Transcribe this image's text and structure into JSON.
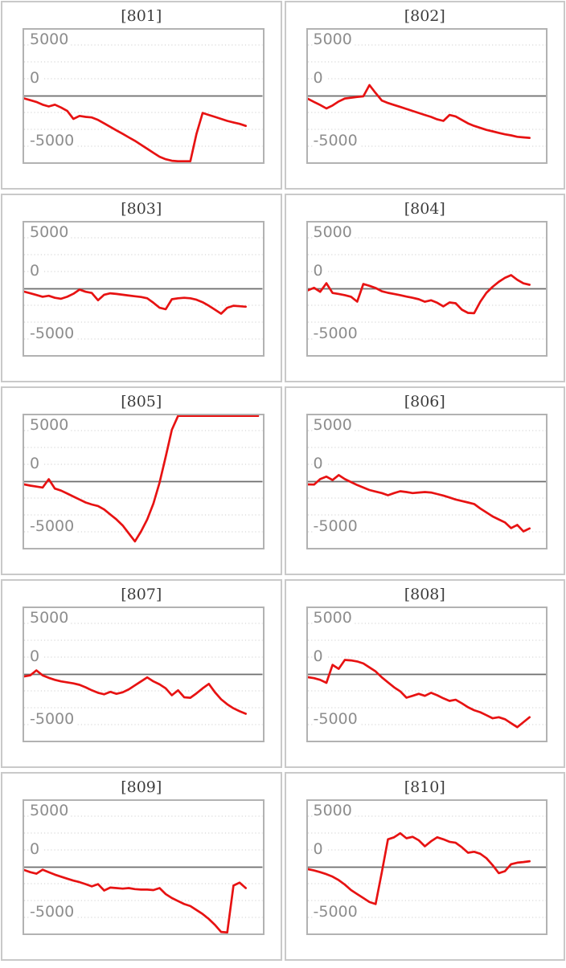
{
  "axis": {
    "yticks": [
      "5000",
      "0",
      "-5000"
    ],
    "ytick_values": [
      5000,
      0,
      -5000
    ],
    "ylim": [
      -6650,
      6650
    ],
    "grid": "dotted horizontal lines, zero axis solid",
    "legend": "none",
    "xlabel": "",
    "ylabel": ""
  },
  "colors": {
    "series_line": "#e71212",
    "zero_line": "#6e6e6e",
    "gridline": "#d8d8d8",
    "plot_border": "#b2b2b2",
    "cell_border": "#c9c9c9",
    "tick_label": "#8d8d8d",
    "title_text": "#3d3d3d",
    "background": "#ffffff"
  },
  "chart_data": [
    {
      "type": "line",
      "title": "[801]",
      "values": [
        -240,
        -420,
        -600,
        -870,
        -1050,
        -870,
        -1150,
        -1500,
        -2300,
        -2000,
        -2100,
        -2150,
        -2400,
        -2750,
        -3100,
        -3450,
        -3800,
        -4150,
        -4500,
        -4900,
        -5300,
        -5700,
        -6100,
        -6350,
        -6500,
        -6550,
        -6550,
        -6550,
        -3800,
        -1700,
        -1900,
        -2100,
        -2300,
        -2500,
        -2650,
        -2800,
        -3000
      ]
    },
    {
      "type": "line",
      "title": "[802]",
      "values": [
        -280,
        -600,
        -900,
        -1250,
        -950,
        -550,
        -250,
        -180,
        -100,
        -30,
        1100,
        300,
        -450,
        -700,
        -900,
        -1100,
        -1300,
        -1500,
        -1700,
        -1900,
        -2100,
        -2350,
        -2500,
        -1900,
        -2050,
        -2400,
        -2750,
        -3000,
        -3200,
        -3400,
        -3550,
        -3700,
        -3850,
        -3950,
        -4100,
        -4150,
        -4200
      ]
    },
    {
      "type": "line",
      "title": "[803]",
      "values": [
        -280,
        -450,
        -620,
        -800,
        -700,
        -900,
        -1000,
        -800,
        -500,
        -80,
        -300,
        -420,
        -1150,
        -600,
        -450,
        -520,
        -600,
        -680,
        -750,
        -820,
        -950,
        -1400,
        -1900,
        -2050,
        -1050,
        -950,
        -900,
        -950,
        -1100,
        -1350,
        -1700,
        -2100,
        -2500,
        -1900,
        -1700,
        -1750,
        -1800
      ]
    },
    {
      "type": "line",
      "title": "[804]",
      "values": [
        -150,
        100,
        -300,
        560,
        -420,
        -520,
        -640,
        -800,
        -1290,
        480,
        300,
        80,
        -250,
        -400,
        -520,
        -640,
        -780,
        -900,
        -1050,
        -1300,
        -1150,
        -1400,
        -1770,
        -1370,
        -1450,
        -2100,
        -2420,
        -2450,
        -1300,
        -400,
        200,
        700,
        1100,
        1370,
        900,
        550,
        400
      ]
    },
    {
      "type": "line",
      "title": "[805]",
      "values": [
        -280,
        -400,
        -500,
        -600,
        240,
        -700,
        -900,
        -1200,
        -1500,
        -1800,
        -2100,
        -2300,
        -2450,
        -2800,
        -3300,
        -3800,
        -4400,
        -5200,
        -6000,
        -5000,
        -3800,
        -2200,
        -100,
        2500,
        5200,
        6600,
        6600,
        6600,
        6600,
        6600,
        6600,
        6600,
        6600,
        6600,
        6600,
        6600,
        6600,
        6600,
        6600
      ]
    },
    {
      "type": "line",
      "title": "[806]",
      "values": [
        -280,
        -300,
        250,
        500,
        150,
        650,
        250,
        -50,
        -350,
        -600,
        -850,
        -1000,
        -1150,
        -1370,
        -1150,
        -970,
        -1050,
        -1150,
        -1100,
        -1050,
        -1100,
        -1250,
        -1400,
        -1600,
        -1800,
        -1950,
        -2100,
        -2250,
        -2700,
        -3100,
        -3500,
        -3800,
        -4100,
        -4670,
        -4350,
        -5000,
        -4700
      ]
    },
    {
      "type": "line",
      "title": "[807]",
      "values": [
        -200,
        -100,
        400,
        -100,
        -350,
        -550,
        -700,
        -800,
        -900,
        -1050,
        -1300,
        -1600,
        -1850,
        -2000,
        -1750,
        -1950,
        -1800,
        -1500,
        -1100,
        -700,
        -300,
        -700,
        -1000,
        -1400,
        -2100,
        -1600,
        -2300,
        -2350,
        -1900,
        -1400,
        -950,
        -1800,
        -2500,
        -3000,
        -3400,
        -3700,
        -3950
      ]
    },
    {
      "type": "line",
      "title": "[808]",
      "values": [
        -280,
        -380,
        -550,
        -850,
        950,
        560,
        1450,
        1400,
        1300,
        1100,
        700,
        300,
        -300,
        -800,
        -1300,
        -1700,
        -2340,
        -2150,
        -1950,
        -2150,
        -1850,
        -2100,
        -2400,
        -2660,
        -2550,
        -2900,
        -3300,
        -3600,
        -3800,
        -4100,
        -4400,
        -4300,
        -4500,
        -4900,
        -5300,
        -4800,
        -4300
      ]
    },
    {
      "type": "line",
      "title": "[809]",
      "values": [
        -280,
        -500,
        -650,
        -250,
        -500,
        -750,
        -950,
        -1150,
        -1350,
        -1500,
        -1700,
        -1930,
        -1700,
        -2340,
        -2050,
        -2100,
        -2150,
        -2100,
        -2200,
        -2250,
        -2250,
        -2300,
        -2100,
        -2700,
        -3100,
        -3400,
        -3700,
        -3900,
        -4300,
        -4700,
        -5200,
        -5800,
        -6500,
        -6550,
        -1850,
        -1550,
        -2100
      ]
    },
    {
      "type": "line",
      "title": "[810]",
      "values": [
        -200,
        -330,
        -500,
        -700,
        -950,
        -1300,
        -1750,
        -2300,
        -2700,
        -3100,
        -3500,
        -3700,
        -500,
        2800,
        3000,
        3400,
        2900,
        3050,
        2700,
        2100,
        2600,
        3000,
        2800,
        2550,
        2450,
        2000,
        1450,
        1550,
        1350,
        900,
        200,
        -600,
        -400,
        300,
        450,
        520,
        600
      ]
    }
  ]
}
